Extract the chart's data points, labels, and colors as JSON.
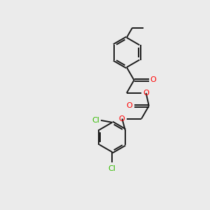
{
  "background_color": "#ebebeb",
  "bond_color": "#1a1a1a",
  "oxygen_color": "#ff0000",
  "chlorine_color": "#33bb00",
  "bond_width": 1.4,
  "dbo": 0.045,
  "figsize": [
    3.0,
    3.0
  ],
  "dpi": 100,
  "xlim": [
    0,
    10
  ],
  "ylim": [
    0,
    10
  ]
}
